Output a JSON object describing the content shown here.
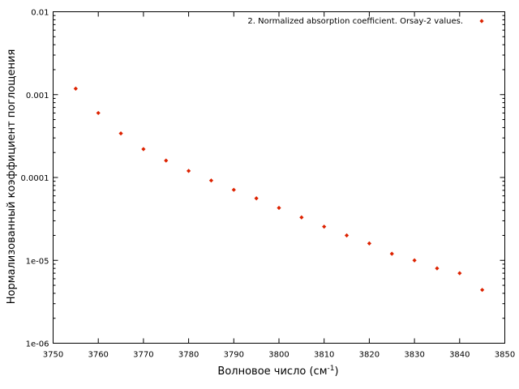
{
  "chart_data": {
    "type": "scatter",
    "xlabel": "Волновое число (см",
    "xlabel_sup": "-1",
    "xlabel_end": ")",
    "ylabel": "Нормализованный коэффициент поглощения",
    "xlim": [
      3750,
      3850
    ],
    "ylim": [
      1e-06,
      0.01
    ],
    "yscale": "log",
    "grid": false,
    "legend_position": "top-right",
    "x_ticks": [
      "3750",
      "3760",
      "3770",
      "3780",
      "3790",
      "3800",
      "3810",
      "3820",
      "3830",
      "3840",
      "3850"
    ],
    "y_ticks": [
      "1e-06",
      "1e-05",
      "0.0001",
      "0.001",
      "0.01"
    ],
    "series": [
      {
        "name": "2. Normalized absorption coefficient. Orsay-2 values.",
        "color": "#dd2200",
        "marker": "diamond",
        "x": [
          3755,
          3760,
          3765,
          3770,
          3775,
          3780,
          3785,
          3790,
          3795,
          3800,
          3805,
          3810,
          3815,
          3820,
          3825,
          3830,
          3835,
          3840,
          3845
        ],
        "y": [
          0.00118,
          0.0006,
          0.00034,
          0.00022,
          0.00016,
          0.00012,
          9.2e-05,
          7.1e-05,
          5.6e-05,
          4.3e-05,
          3.3e-05,
          2.55e-05,
          2e-05,
          1.6e-05,
          1.2e-05,
          1e-05,
          8e-06,
          7e-06,
          4.4e-06
        ]
      }
    ]
  }
}
